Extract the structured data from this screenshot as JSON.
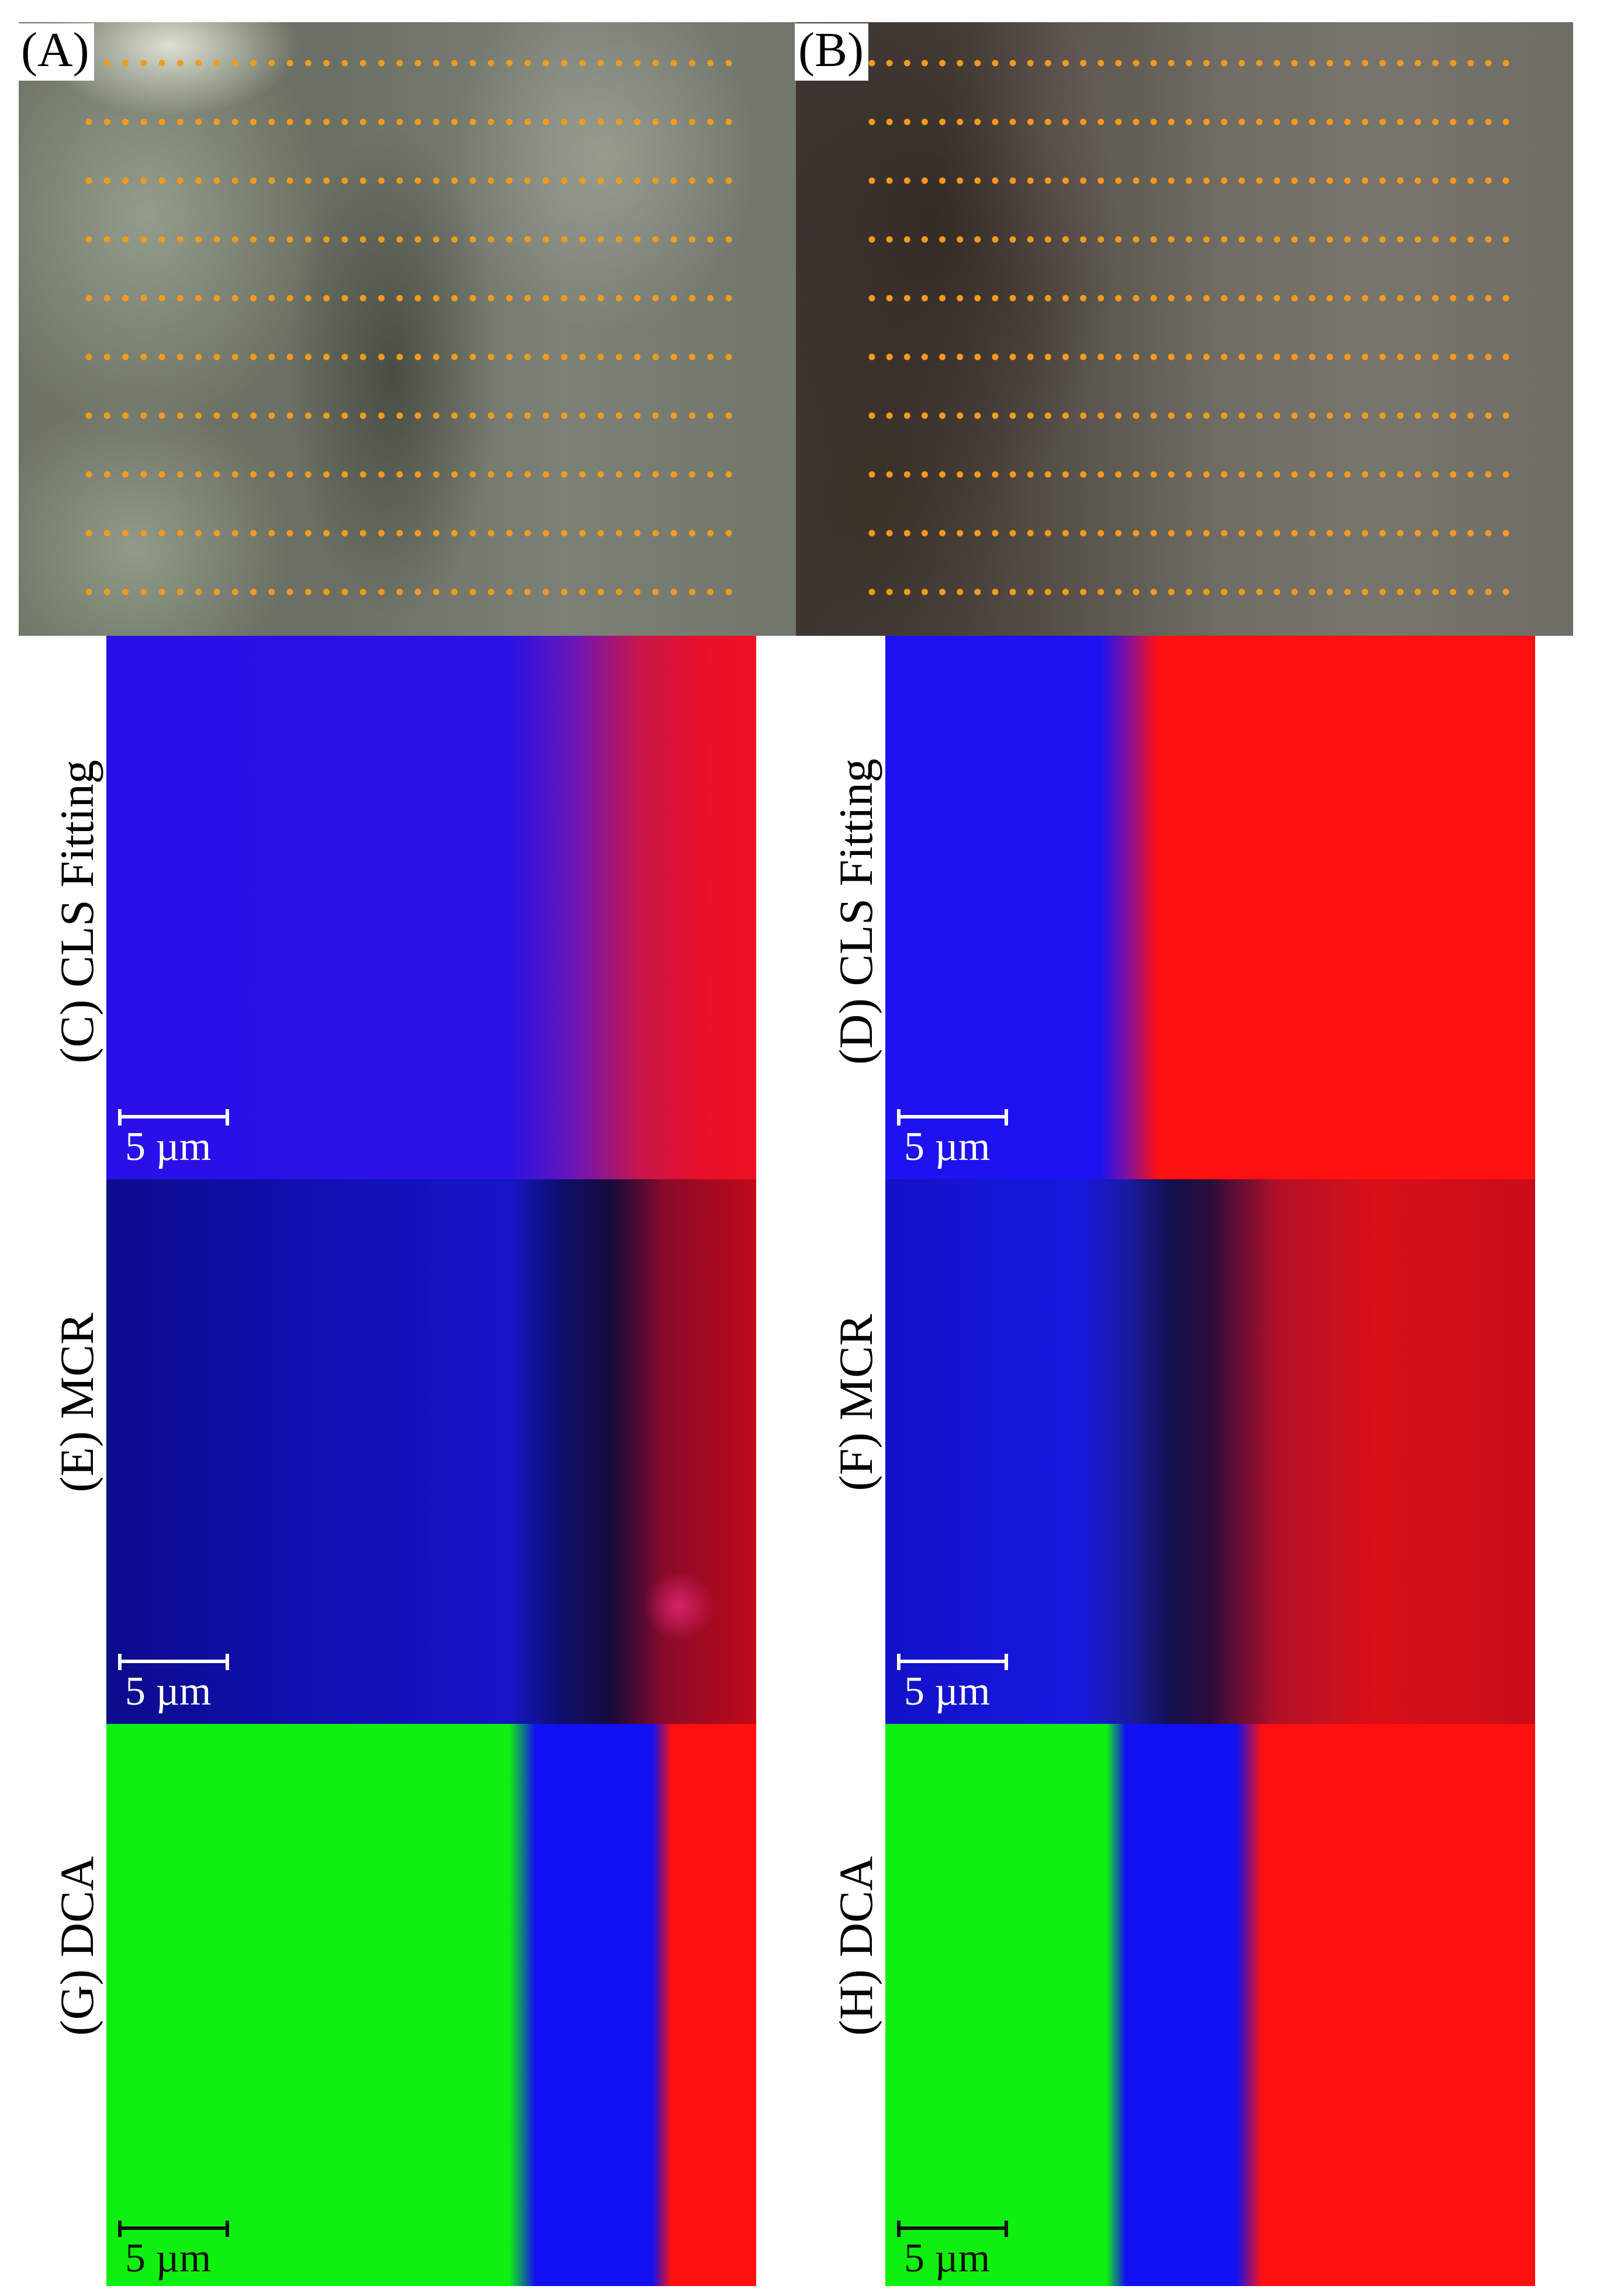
{
  "panels": {
    "a_letter": "(A)",
    "b_letter": "(B)",
    "c_label": "(C) CLS Fitting",
    "d_label": "(D) CLS Fitting",
    "e_label": "(E) MCR",
    "f_label": "(F) MCR",
    "g_label": "(G) DCA",
    "h_label": "(H) DCA"
  },
  "scalebar": {
    "label": "5 µm"
  },
  "colors": {
    "dot": "#f39a1f",
    "blue": "#1e10e8",
    "red": "#ff1010",
    "green": "#10f010",
    "dark_blue": "#0a0a7a"
  },
  "grid": {
    "rows": 10,
    "cols_a": 36,
    "cols_b": 37
  }
}
